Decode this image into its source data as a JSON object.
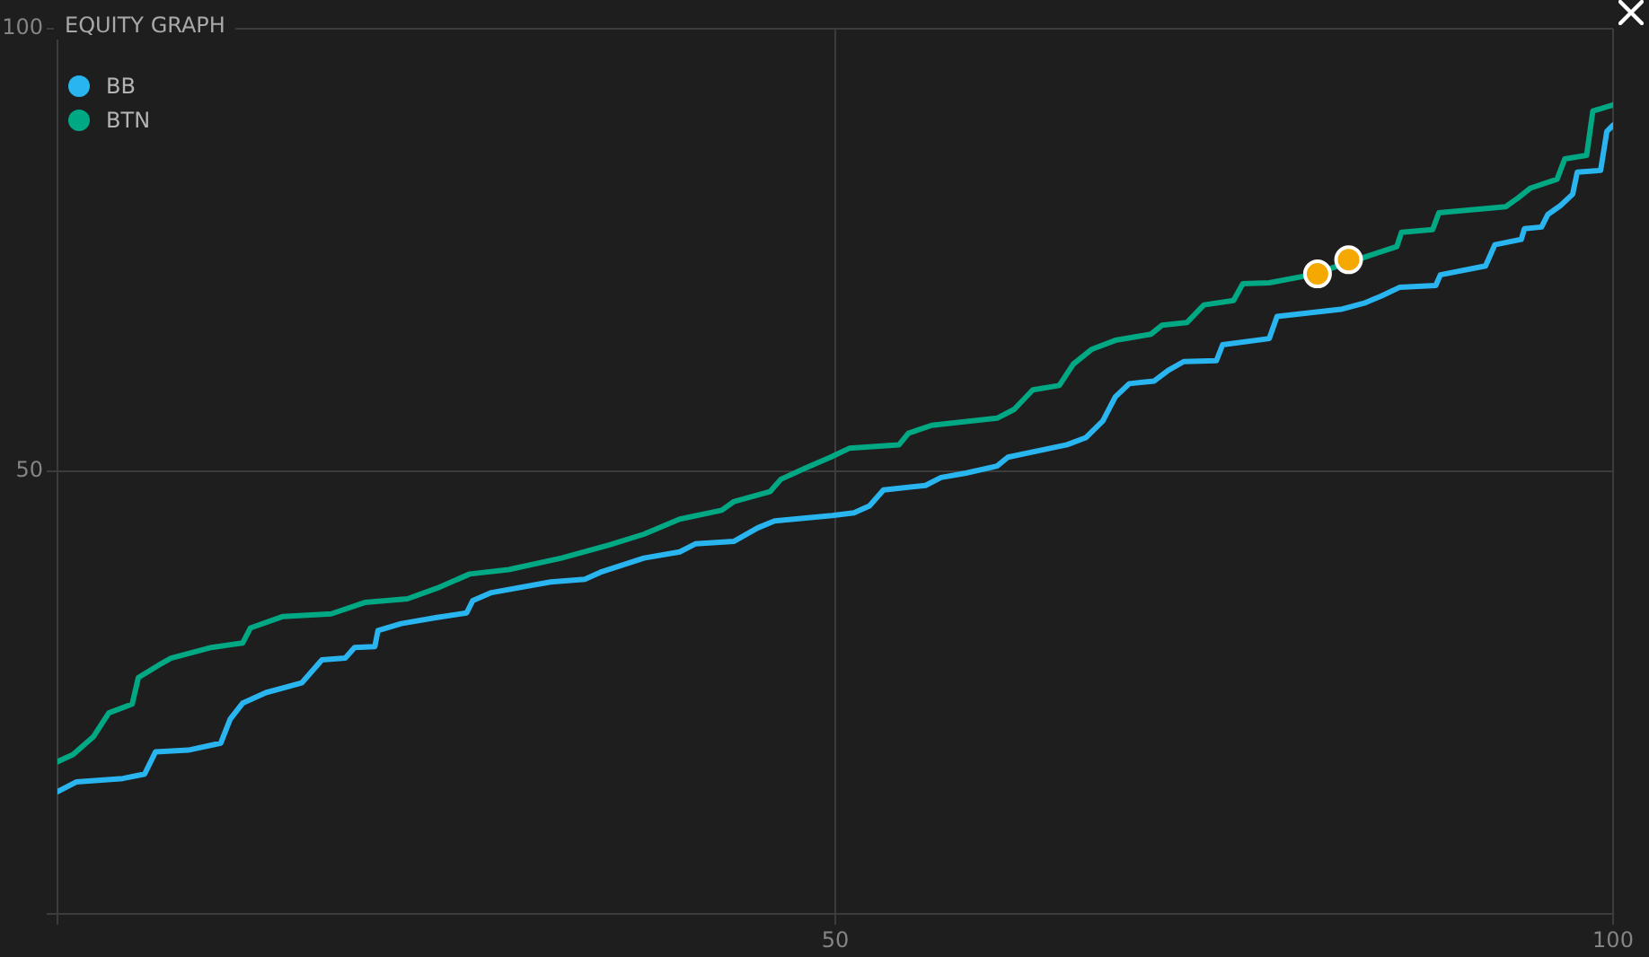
{
  "chart_data": {
    "type": "line",
    "title": "EQUITY GRAPH",
    "xlim": [
      0,
      100
    ],
    "ylim": [
      0,
      100
    ],
    "xticks": [
      {
        "value": 0,
        "label": null
      },
      50,
      100
    ],
    "yticks": [
      {
        "value": 0,
        "label": null
      },
      50,
      100
    ],
    "grid": true,
    "legend": "top left",
    "marker": "none",
    "line_style": "solid",
    "series": [
      {
        "name": "BB",
        "color": "#29b6f0",
        "x": [
          0,
          1.2,
          4.2,
          5.6,
          6.3,
          8.4,
          10.5,
          11.1,
          11.9,
          13.4,
          15.7,
          17,
          18.5,
          19.1,
          20.4,
          20.6,
          22.1,
          24.4,
          26.3,
          26.7,
          27.9,
          31.7,
          33.9,
          34.9,
          37.7,
          40,
          41,
          43.5,
          45,
          46.1,
          49.8,
          51.2,
          52.2,
          53.1,
          55.8,
          56.8,
          58.4,
          60.4,
          61.1,
          64.9,
          66.1,
          67.2,
          68,
          68.9,
          70.5,
          71.4,
          72.4,
          74.5,
          74.9,
          77.9,
          78.4,
          82.5,
          84,
          85.1,
          86.3,
          88.6,
          88.9,
          91.8,
          92.4,
          94.1,
          94.3,
          95.4,
          95.8,
          96.6,
          97.4,
          97.7,
          99.2,
          99.6,
          100
        ],
        "values": [
          13.8,
          14.9,
          15.3,
          15.8,
          18.3,
          18.5,
          19.3,
          22,
          23.8,
          25,
          26.1,
          28.7,
          28.9,
          30.1,
          30.2,
          32,
          32.8,
          33.5,
          34,
          35.4,
          36.3,
          37.5,
          37.8,
          38.6,
          40.2,
          40.9,
          41.8,
          42.1,
          43.6,
          44.4,
          45,
          45.3,
          46.1,
          47.9,
          48.4,
          49.3,
          49.8,
          50.6,
          51.6,
          53,
          53.8,
          55.7,
          58.4,
          59.9,
          60.2,
          61.4,
          62.4,
          62.5,
          64.3,
          65,
          67.5,
          68.3,
          69,
          69.8,
          70.8,
          71,
          72.2,
          73.2,
          75.6,
          76.2,
          77.4,
          77.6,
          79,
          80,
          81.3,
          83.8,
          84,
          88.4,
          89.1
        ]
      },
      {
        "name": "BTN",
        "color": "#00a884",
        "x": [
          0,
          1,
          2.3,
          3.3,
          4.8,
          5.2,
          6.5,
          7.3,
          9.9,
          11.9,
          12.4,
          14.5,
          17.6,
          19.8,
          22.5,
          24.4,
          26.5,
          29,
          32.4,
          35.5,
          37.7,
          40,
          42.7,
          43.5,
          45.8,
          46.5,
          48,
          49.7,
          50.9,
          54.1,
          54.7,
          56.2,
          60.4,
          61.5,
          62.7,
          64.4,
          65.3,
          66.5,
          68,
          70.3,
          71,
          72.6,
          73.7,
          75.6,
          76.2,
          77.9,
          80.6,
          83.2,
          86.1,
          86.4,
          88.4,
          88.8,
          93.1,
          93.9,
          94.7,
          96.4,
          96.9,
          98.3,
          98.7,
          100
        ],
        "values": [
          17.2,
          18,
          20,
          22.7,
          23.7,
          26.7,
          28.1,
          28.9,
          30.1,
          30.6,
          32.3,
          33.6,
          33.9,
          35.2,
          35.6,
          36.8,
          38.4,
          38.9,
          40.2,
          41.7,
          42.9,
          44.6,
          45.6,
          46.6,
          47.7,
          49.1,
          50.3,
          51.6,
          52.6,
          53,
          54.3,
          55.2,
          56,
          57,
          59.2,
          59.7,
          62.1,
          63.8,
          64.8,
          65.5,
          66.5,
          66.8,
          68.8,
          69.3,
          71.2,
          71.3,
          72.2,
          null,
          75.4,
          77,
          77.3,
          79.2,
          79.9,
          80.9,
          82,
          83,
          85.3,
          85.7,
          90.7,
          91.4
        ]
      },
      {
        "type": "scatter",
        "color": "#f5a800",
        "marker": "circle",
        "x": [
          81,
          83
        ],
        "values": [
          72.3,
          73.9
        ]
      }
    ]
  }
}
